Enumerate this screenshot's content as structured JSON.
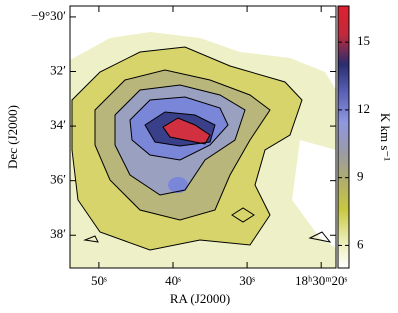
{
  "chart_data": {
    "type": "image",
    "x_label": "RA (J2000)",
    "y_label": "Dec (J2000)",
    "colorbar_label": "K km s⁻¹",
    "xlim": [
      53.9,
      18.0
    ],
    "xticks": [
      {
        "value": 50,
        "label": "50ˢ"
      },
      {
        "value": 40,
        "label": "40ˢ"
      },
      {
        "value": 30,
        "label": "30ˢ"
      },
      {
        "value": 20,
        "label": "18ʰ30ᵐ20ˢ"
      }
    ],
    "ylim": [
      39.2,
      29.6
    ],
    "yticks": [
      {
        "value": 30,
        "label": "−9°30′"
      },
      {
        "value": 32,
        "label": "32′"
      },
      {
        "value": 34,
        "label": "34′"
      },
      {
        "value": 36,
        "label": "36′"
      },
      {
        "value": 38,
        "label": "38′"
      }
    ],
    "clim": [
      5.0,
      16.6
    ],
    "cticks": [
      6,
      9,
      12,
      15
    ],
    "colormap": [
      "#ffffff",
      "#e9ebb0",
      "#c9c840",
      "#b0ae6c",
      "#9a9aa8",
      "#8f98e0",
      "#5c63b8",
      "#2a2d6e",
      "#c02a3c",
      "#e02030"
    ]
  }
}
